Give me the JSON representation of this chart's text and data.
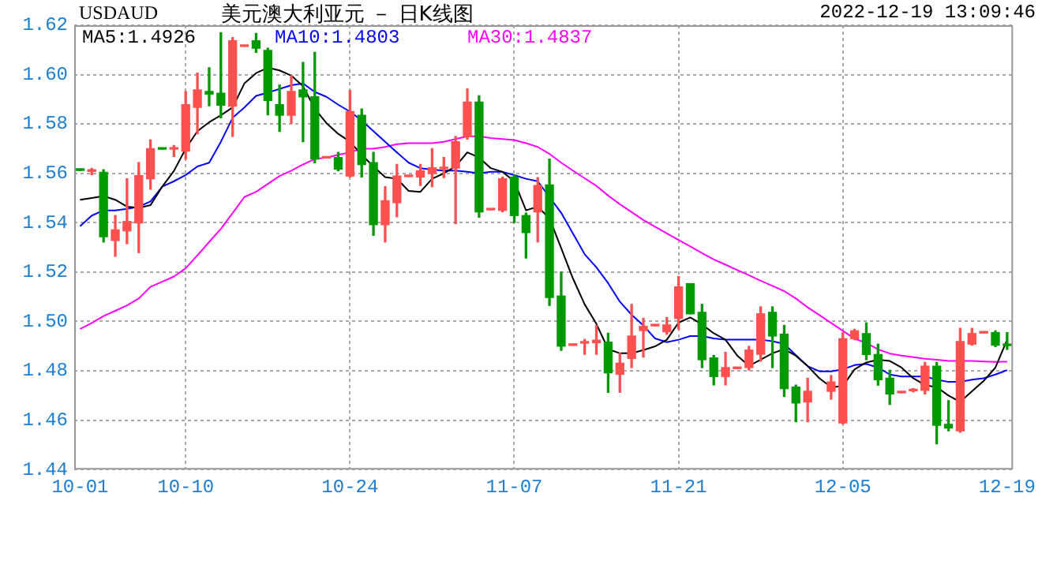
{
  "chart_data": {
    "type": "candlestick",
    "title": "美元澳大利亚元 － 日K线图",
    "annotations": [
      "USDAUD",
      "2022-12-19 13:09:46"
    ],
    "categories": [
      "10-01",
      null,
      null,
      null,
      null,
      null,
      null,
      null,
      null,
      "10-10",
      null,
      null,
      null,
      null,
      null,
      null,
      null,
      null,
      null,
      null,
      null,
      null,
      null,
      "10-24",
      null,
      null,
      null,
      null,
      null,
      null,
      null,
      null,
      null,
      null,
      null,
      null,
      null,
      "11-07",
      null,
      null,
      null,
      null,
      null,
      null,
      null,
      null,
      null,
      null,
      null,
      null,
      null,
      "11-21",
      null,
      null,
      null,
      null,
      null,
      null,
      null,
      null,
      null,
      null,
      null,
      null,
      null,
      "12-05",
      null,
      null,
      null,
      null,
      null,
      null,
      null,
      null,
      null,
      null,
      null,
      null,
      null,
      "12-19"
    ],
    "ohlc": [
      [
        1.5618,
        1.5618,
        1.5612,
        1.5612
      ],
      [
        1.5608,
        1.562,
        1.5595,
        1.5612
      ],
      [
        1.5604,
        1.5615,
        1.5322,
        1.5343
      ],
      [
        1.5328,
        1.5429,
        1.5264,
        1.5371
      ],
      [
        1.5367,
        1.5578,
        1.5315,
        1.5405
      ],
      [
        1.5399,
        1.5643,
        1.5279,
        1.5591
      ],
      [
        1.5578,
        1.5735,
        1.5536,
        1.57
      ],
      [
        1.5702,
        1.5702,
        1.5698,
        1.5698
      ],
      [
        1.5698,
        1.5713,
        1.5668,
        1.5702
      ],
      [
        1.569,
        1.5932,
        1.5658,
        1.5878
      ],
      [
        1.5867,
        1.6006,
        1.576,
        1.5938
      ],
      [
        1.5932,
        1.6028,
        1.5874,
        1.5921
      ],
      [
        1.5925,
        1.617,
        1.5825,
        1.5876
      ],
      [
        1.5872,
        1.615,
        1.575,
        1.6137
      ],
      [
        1.6114,
        1.6118,
        1.6114,
        1.6118
      ],
      [
        1.6137,
        1.6167,
        1.609,
        1.6107
      ],
      [
        1.6098,
        1.6107,
        1.5837,
        1.5895
      ],
      [
        1.5878,
        1.5957,
        1.577,
        1.5835
      ],
      [
        1.5835,
        1.5996,
        1.5803,
        1.5932
      ],
      [
        1.5938,
        1.6049,
        1.5728,
        1.591
      ],
      [
        1.591,
        1.609,
        1.5643,
        1.5658
      ],
      [
        1.5662,
        1.5666,
        1.5662,
        1.5666
      ],
      [
        1.5664,
        1.5685,
        1.5611,
        1.5617
      ],
      [
        1.5589,
        1.5936,
        1.5585,
        1.585
      ],
      [
        1.5835,
        1.5861,
        1.5585,
        1.5636
      ],
      [
        1.5643,
        1.5685,
        1.5349,
        1.5392
      ],
      [
        1.5392,
        1.5546,
        1.5322,
        1.5489
      ],
      [
        1.5481,
        1.5636,
        1.5424,
        1.5589
      ],
      [
        1.5587,
        1.5591,
        1.5587,
        1.5591
      ],
      [
        1.5585,
        1.5636,
        1.5551,
        1.5611
      ],
      [
        1.56,
        1.57,
        1.5546,
        1.5623
      ],
      [
        1.5619,
        1.5664,
        1.5583,
        1.5623
      ],
      [
        1.5621,
        1.575,
        1.5396,
        1.5728
      ],
      [
        1.575,
        1.5942,
        1.5739,
        1.5889
      ],
      [
        1.5889,
        1.5914,
        1.5422,
        1.5444
      ],
      [
        1.5452,
        1.5456,
        1.5452,
        1.5456
      ],
      [
        1.545,
        1.5585,
        1.5444,
        1.5578
      ],
      [
        1.5585,
        1.5593,
        1.5401,
        1.5429
      ],
      [
        1.5429,
        1.5439,
        1.5257,
        1.536
      ],
      [
        1.5444,
        1.5583,
        1.5322,
        1.5551
      ],
      [
        1.5553,
        1.5658,
        1.5065,
        1.5097
      ],
      [
        1.5103,
        1.52,
        1.4883,
        1.49
      ],
      [
        1.4903,
        1.4907,
        1.4903,
        1.4907
      ],
      [
        1.4912,
        1.4927,
        1.4867,
        1.4916
      ],
      [
        1.4914,
        1.4984,
        1.4867,
        1.4924
      ],
      [
        1.4916,
        1.4952,
        1.4713,
        1.4792
      ],
      [
        1.4786,
        1.4871,
        1.4713,
        1.4831
      ],
      [
        1.485,
        1.5069,
        1.4813,
        1.4941
      ],
      [
        1.4963,
        1.5012,
        1.4856,
        1.498
      ],
      [
        1.4982,
        1.4986,
        1.4982,
        1.4986
      ],
      [
        1.4958,
        1.5016,
        1.4948,
        1.4986
      ],
      [
        1.5012,
        1.5182,
        1.4969,
        1.514
      ],
      [
        1.5153,
        1.5153,
        1.5031,
        1.5031
      ],
      [
        1.5037,
        1.5069,
        1.4813,
        1.4845
      ],
      [
        1.4852,
        1.4862,
        1.4743,
        1.4777
      ],
      [
        1.4777,
        1.4875,
        1.4743,
        1.4813
      ],
      [
        1.4809,
        1.4813,
        1.4809,
        1.4813
      ],
      [
        1.4813,
        1.4899,
        1.4803,
        1.4884
      ],
      [
        1.4867,
        1.5059,
        1.4839,
        1.5031
      ],
      [
        1.5037,
        1.5059,
        1.4813,
        1.4941
      ],
      [
        1.4948,
        1.4984,
        1.4696,
        1.4728
      ],
      [
        1.4734,
        1.4742,
        1.4594,
        1.467
      ],
      [
        1.4674,
        1.477,
        1.4594,
        1.4717
      ],
      null,
      [
        1.4717,
        1.4781,
        1.4685,
        1.4755
      ],
      [
        1.4589,
        1.4955,
        1.4585,
        1.493
      ],
      [
        1.493,
        1.4968,
        1.4926,
        1.4962
      ],
      [
        1.4951,
        1.4994,
        1.4845,
        1.4866
      ],
      [
        1.4866,
        1.4908,
        1.4742,
        1.4764
      ],
      [
        1.477,
        1.4802,
        1.4664,
        1.4706
      ],
      [
        1.4711,
        1.4715,
        1.4711,
        1.4715
      ],
      [
        1.4719,
        1.4728,
        1.4715,
        1.4723
      ],
      [
        1.4721,
        1.4834,
        1.4706,
        1.4819
      ],
      [
        1.4819,
        1.4834,
        1.4504,
        1.4579
      ],
      [
        1.4583,
        1.4679,
        1.4557,
        1.4568
      ],
      [
        1.4557,
        1.4972,
        1.4551,
        1.4919
      ],
      [
        1.4908,
        1.4972,
        1.4904,
        1.4951
      ],
      [
        1.4953,
        1.4957,
        1.4953,
        1.4957
      ],
      [
        1.4955,
        1.4962,
        1.4898,
        1.4904
      ],
      [
        1.4904,
        1.4955,
        1.4887,
        1.4902
      ]
    ],
    "colors": [
      "#009900",
      "#ff5050",
      "#009900",
      "#ff5050",
      "#ff5050",
      "#ff5050",
      "#ff5050",
      "#009900",
      "#ff5050",
      "#ff5050",
      "#ff5050",
      "#009900",
      "#009900",
      "#ff5050",
      "#ff5050",
      "#009900",
      "#009900",
      "#009900",
      "#ff5050",
      "#009900",
      "#009900",
      "#ff5050",
      "#009900",
      "#ff5050",
      "#009900",
      "#009900",
      "#ff5050",
      "#ff5050",
      "#ff5050",
      "#ff5050",
      "#ff5050",
      "#ff5050",
      "#ff5050",
      "#ff5050",
      "#009900",
      "#ff5050",
      "#ff5050",
      "#009900",
      "#009900",
      "#ff5050",
      "#009900",
      "#009900",
      "#ff5050",
      "#ff5050",
      "#ff5050",
      "#009900",
      "#ff5050",
      "#ff5050",
      "#ff5050",
      "#ff5050",
      "#ff5050",
      "#ff5050",
      "#009900",
      "#009900",
      "#009900",
      "#ff5050",
      "#ff5050",
      "#ff5050",
      "#ff5050",
      "#009900",
      "#009900",
      "#009900",
      "#ff5050",
      "#ff5050",
      "#ff5050",
      "#ff5050",
      "#ff5050",
      "#009900",
      "#009900",
      "#009900",
      "#ff5050",
      "#ff5050",
      "#ff5050",
      "#009900",
      "#009900",
      "#ff5050",
      "#ff5050",
      "#ff5050",
      "#009900",
      "#009900"
    ],
    "series": [
      {
        "type": "line",
        "name": "MA5:1.4926",
        "color": "#000000",
        "values": [
          1.5493,
          1.55,
          1.5508,
          1.5493,
          1.5465,
          1.546,
          1.5471,
          1.5546,
          1.561,
          1.57,
          1.5771,
          1.5807,
          1.5835,
          1.5867,
          1.5964,
          1.6006,
          1.6028,
          1.6017,
          1.5996,
          1.5953,
          1.5862,
          1.5803,
          1.576,
          1.5728,
          1.5675,
          1.5628,
          1.5585,
          1.5578,
          1.5529,
          1.5525,
          1.5578,
          1.56,
          1.5628,
          1.5685,
          1.5664,
          1.5621,
          1.5606,
          1.5568,
          1.545,
          1.5465,
          1.5418,
          1.5297,
          1.5174,
          1.5069,
          1.499,
          1.4888,
          1.4871,
          1.4871,
          1.4884,
          1.4899,
          1.4926,
          1.4995,
          1.5016,
          1.4988,
          1.4952,
          1.4926,
          1.4862,
          1.482,
          1.4845,
          1.4871,
          1.4888,
          1.4861,
          1.4819,
          1.477,
          1.4734,
          1.4738,
          1.4806,
          1.4834,
          1.4845,
          1.484,
          1.4813,
          1.477,
          1.4742,
          1.4734,
          1.47,
          1.4674,
          1.4717,
          1.4759,
          1.4813,
          1.4926
        ]
      },
      {
        "type": "line",
        "name": "MA10:1.4803",
        "color": "#0000ff",
        "values": [
          1.5386,
          1.5429,
          1.545,
          1.545,
          1.5456,
          1.5465,
          1.5486,
          1.5546,
          1.5568,
          1.5593,
          1.5628,
          1.5643,
          1.5728,
          1.5825,
          1.5867,
          1.5914,
          1.5927,
          1.5942,
          1.5957,
          1.5964,
          1.593,
          1.591,
          1.5878,
          1.585,
          1.5814,
          1.5771,
          1.5728,
          1.5685,
          1.5643,
          1.5621,
          1.5615,
          1.5611,
          1.5611,
          1.5606,
          1.56,
          1.5606,
          1.5606,
          1.5593,
          1.5578,
          1.5568,
          1.5504,
          1.544,
          1.5356,
          1.5272,
          1.5219,
          1.5155,
          1.508,
          1.5027,
          1.4984,
          1.4931,
          1.4916,
          1.4926,
          1.4941,
          1.4941,
          1.4931,
          1.4926,
          1.4926,
          1.4926,
          1.4926,
          1.492,
          1.4909,
          1.4863,
          1.4819,
          1.4798,
          1.4798,
          1.4806,
          1.4823,
          1.4828,
          1.4813,
          1.4785,
          1.4777,
          1.4777,
          1.4777,
          1.4764,
          1.4755,
          1.4755,
          1.4764,
          1.477,
          1.4785,
          1.4803
        ]
      },
      {
        "type": "line",
        "name": "MA30:1.4837",
        "color": "#ff00ff",
        "values": [
          1.4969,
          1.4994,
          1.5022,
          1.5043,
          1.5065,
          1.5093,
          1.514,
          1.5161,
          1.5182,
          1.5215,
          1.5268,
          1.5322,
          1.5375,
          1.5439,
          1.5504,
          1.5525,
          1.5557,
          1.5589,
          1.5611,
          1.5636,
          1.5658,
          1.5664,
          1.5675,
          1.5685,
          1.57,
          1.57,
          1.5707,
          1.5718,
          1.5722,
          1.5722,
          1.5722,
          1.5728,
          1.5739,
          1.575,
          1.575,
          1.5743,
          1.5739,
          1.5735,
          1.5722,
          1.5707,
          1.5679,
          1.5643,
          1.5611,
          1.558,
          1.5549,
          1.551,
          1.5475,
          1.5443,
          1.5411,
          1.5384,
          1.5357,
          1.533,
          1.5304,
          1.5277,
          1.5251,
          1.523,
          1.5208,
          1.5187,
          1.5165,
          1.5144,
          1.5123,
          1.5093,
          1.5057,
          1.5026,
          1.4994,
          1.4962,
          1.493,
          1.4913,
          1.4887,
          1.487,
          1.4862,
          1.4855,
          1.4849,
          1.4845,
          1.484,
          1.484,
          1.484,
          1.4838,
          1.4836,
          1.4837
        ]
      }
    ],
    "ylim": [
      1.44,
      1.62
    ],
    "yticks": [
      {
        "value": 1.44,
        "label": "1.44"
      },
      {
        "value": 1.46,
        "label": "1.46"
      },
      {
        "value": 1.48,
        "label": "1.48"
      },
      {
        "value": 1.5,
        "label": "1.50"
      },
      {
        "value": 1.52,
        "label": "1.52"
      },
      {
        "value": 1.54,
        "label": "1.54"
      },
      {
        "value": 1.56,
        "label": "1.56"
      },
      {
        "value": 1.58,
        "label": "1.58"
      },
      {
        "value": 1.6,
        "label": "1.60"
      },
      {
        "value": 1.62,
        "label": "1.62"
      }
    ],
    "grid": true,
    "legend": "top left"
  }
}
